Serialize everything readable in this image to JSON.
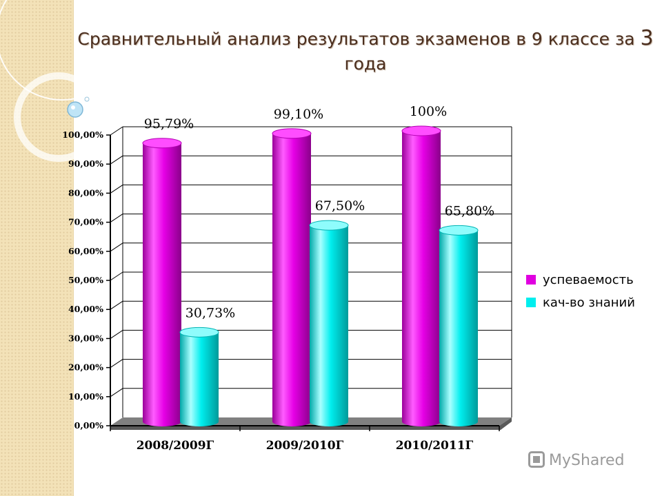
{
  "title": "Сравнительный анализ результатов экзаменов  в 9 классе за 3 года",
  "title_parts": {
    "main": "Сравнительный анализ результатов экзаменов  в 9 классе за ",
    "num": "3",
    "last": "года"
  },
  "watermark": "MyShared",
  "chart_data": {
    "type": "bar",
    "categories": [
      "2008/2009Г",
      "2009/2010Г",
      "2010/2011Г"
    ],
    "series": [
      {
        "name": "успеваемость",
        "values": [
          95.79,
          99.1,
          100
        ],
        "labels": [
          "95,79%",
          "99,10%",
          "100%"
        ],
        "color": "#e000e0"
      },
      {
        "name": "кач-во знаний",
        "values": [
          30.73,
          67.5,
          65.8
        ],
        "labels": [
          "30,73%",
          "67,50%",
          "65,80%"
        ],
        "color": "#00eeee"
      }
    ],
    "ylim": [
      0,
      100
    ],
    "yticks": [
      "0,00%",
      "10,00%",
      "20,00%",
      "30,00%",
      "40,00%",
      "50,00%",
      "60,00%",
      "70,00%",
      "80,00%",
      "90,00%",
      "100,00%"
    ],
    "grid": true,
    "legend": "right",
    "style": "3d cylinders"
  }
}
